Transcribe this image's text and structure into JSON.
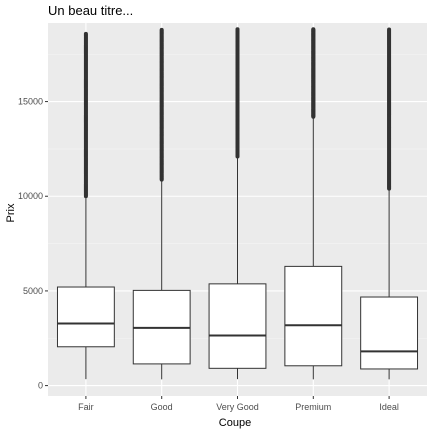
{
  "chart_data": {
    "type": "boxplot",
    "title": "Un beau titre...",
    "xlabel": "Coupe",
    "ylabel": "Prix",
    "categories": [
      "Fair",
      "Good",
      "Very Good",
      "Premium",
      "Ideal"
    ],
    "ylim": [
      -550,
      19150
    ],
    "y_ticks": [
      0,
      5000,
      10000,
      15000
    ],
    "y_tick_labels": [
      "0",
      "5000",
      "10000",
      "15000"
    ],
    "boxes": [
      {
        "category": "Fair",
        "min": 340,
        "q1": 2050,
        "median": 3282,
        "q3": 5206,
        "whisker_high": 9900,
        "max": 18574,
        "outliers_from": 10000
      },
      {
        "category": "Good",
        "min": 330,
        "q1": 1145,
        "median": 3050,
        "q3": 5028,
        "whisker_high": 10850,
        "max": 18788,
        "outliers_from": 10880
      },
      {
        "category": "Very Good",
        "min": 340,
        "q1": 912,
        "median": 2648,
        "q3": 5373,
        "whisker_high": 12050,
        "max": 18818,
        "outliers_from": 12100
      },
      {
        "category": "Premium",
        "min": 330,
        "q1": 1046,
        "median": 3185,
        "q3": 6296,
        "whisker_high": 14150,
        "max": 18823,
        "outliers_from": 14200
      },
      {
        "category": "Ideal",
        "min": 330,
        "q1": 878,
        "median": 1810,
        "q3": 4678,
        "whisker_high": 10350,
        "max": 18806,
        "outliers_from": 10400
      }
    ],
    "grid": true,
    "legend": "none"
  },
  "colors": {
    "panel_background": "#ebebeb",
    "grid_major": "#ffffff",
    "grid_minor": "#f5f5f5",
    "box_fill": "#ffffff",
    "box_line": "#333333",
    "outlier": "#333333",
    "tick_text": "#4d4d4d",
    "tick_line": "#333333"
  }
}
